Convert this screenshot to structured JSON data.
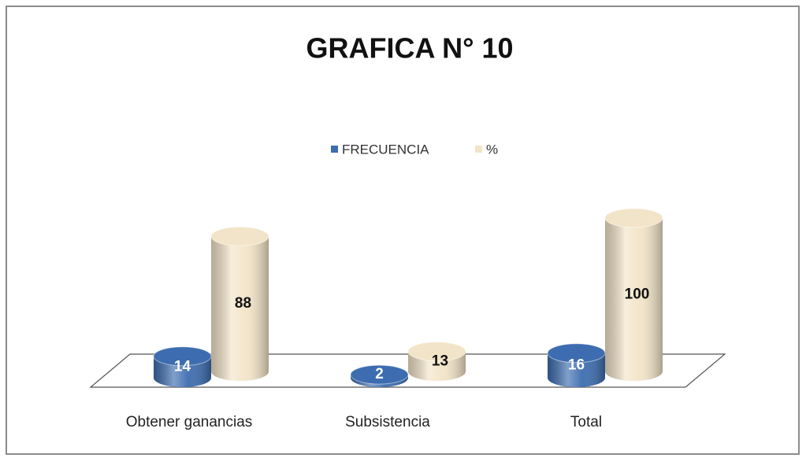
{
  "chart_data": {
    "type": "bar3d",
    "title": "GRAFICA N° 10",
    "categories": [
      "Obtener ganancias",
      "Subsistencia",
      "Total"
    ],
    "series": [
      {
        "name": "FRECUENCIA",
        "color": "#3d6db0",
        "values": [
          14,
          2,
          16
        ]
      },
      {
        "name": "%",
        "color": "#f2e4c8",
        "values": [
          88,
          13,
          100
        ]
      }
    ],
    "legend": "top"
  }
}
